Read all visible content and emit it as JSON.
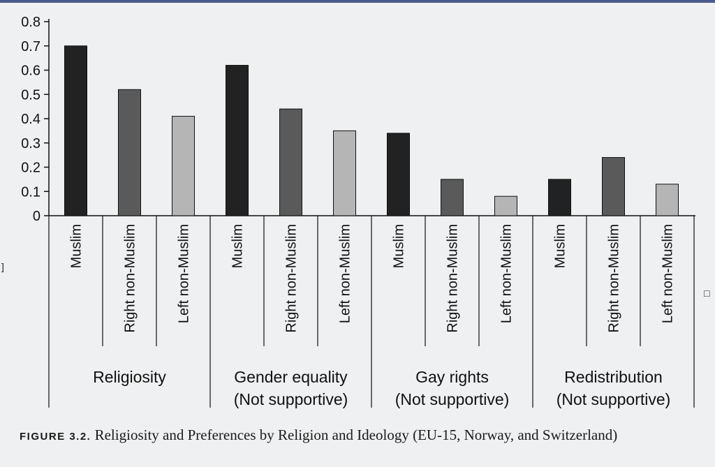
{
  "chart_data": {
    "type": "bar",
    "ylim": [
      0,
      0.8
    ],
    "yticks": [
      "0",
      "0.1",
      "0.2",
      "0.3",
      "0.4",
      "0.5",
      "0.6",
      "0.7",
      "0.8"
    ],
    "grid": false,
    "legend": "none",
    "groups": [
      {
        "label_lines": [
          "Religiosity"
        ],
        "bars": [
          {
            "label": "Muslim",
            "value": 0.7,
            "color": "#222222"
          },
          {
            "label": "Right non-Muslim",
            "value": 0.52,
            "color": "#5a5a5a"
          },
          {
            "label": "Left non-Muslim",
            "value": 0.41,
            "color": "#b5b5b5"
          }
        ]
      },
      {
        "label_lines": [
          "Gender equality",
          "(Not supportive)"
        ],
        "bars": [
          {
            "label": "Muslim",
            "value": 0.62,
            "color": "#222222"
          },
          {
            "label": "Right non-Muslim",
            "value": 0.44,
            "color": "#5a5a5a"
          },
          {
            "label": "Left non-Muslim",
            "value": 0.35,
            "color": "#b5b5b5"
          }
        ]
      },
      {
        "label_lines": [
          "Gay rights",
          "(Not supportive)"
        ],
        "bars": [
          {
            "label": "Muslim",
            "value": 0.34,
            "color": "#222222"
          },
          {
            "label": "Right non-Muslim",
            "value": 0.15,
            "color": "#5a5a5a"
          },
          {
            "label": "Left non-Muslim",
            "value": 0.08,
            "color": "#b5b5b5"
          }
        ]
      },
      {
        "label_lines": [
          "Redistribution",
          "(Not supportive)"
        ],
        "bars": [
          {
            "label": "Muslim",
            "value": 0.15,
            "color": "#222222"
          },
          {
            "label": "Right non-Muslim",
            "value": 0.24,
            "color": "#5a5a5a"
          },
          {
            "label": "Left non-Muslim",
            "value": 0.13,
            "color": "#b5b5b5"
          }
        ]
      }
    ]
  },
  "caption": {
    "label": "FIGURE 3.2.",
    "text": " Religiosity and Preferences by Religion and Ideology (EU-15, Norway, and Switzerland)"
  }
}
